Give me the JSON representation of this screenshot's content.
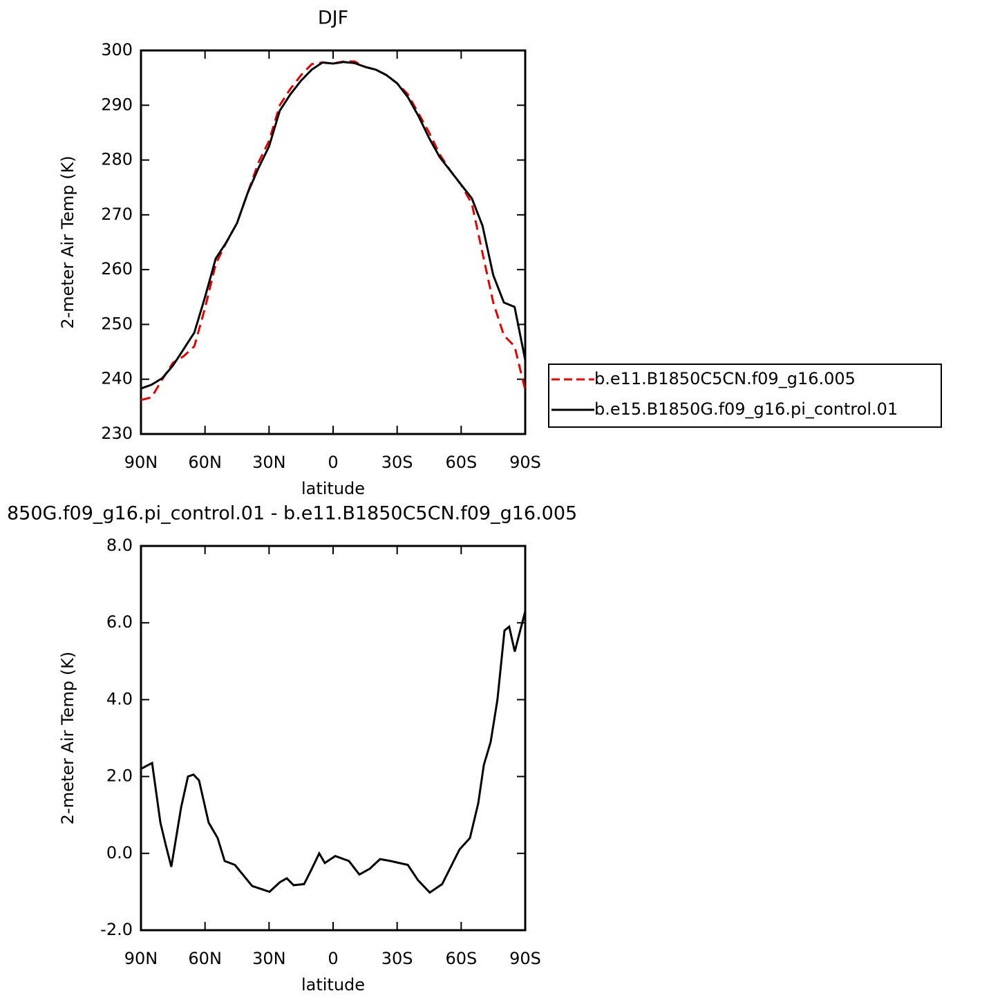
{
  "chart_data": [
    {
      "type": "line",
      "title": "DJF",
      "xlabel": "latitude",
      "ylabel": "2-meter Air Temp (K)",
      "x": [
        90,
        85,
        80,
        75,
        70,
        65,
        60,
        55,
        50,
        45,
        40,
        35,
        30,
        25,
        20,
        15,
        10,
        5,
        0,
        -5,
        -10,
        -15,
        -20,
        -25,
        -30,
        -35,
        -40,
        -45,
        -50,
        -55,
        -60,
        -65,
        -70,
        -75,
        -80,
        -85,
        -90
      ],
      "series": [
        {
          "name": "b.e11.B1850C5CN.f09_g16.005",
          "color": "#e00000",
          "line_style": "dashed",
          "values": [
            236.2,
            236.7,
            240,
            243,
            244.2,
            246,
            253,
            261,
            265,
            268.5,
            274,
            279.5,
            283.5,
            290,
            293,
            295.5,
            297.5,
            297.8,
            297.6,
            298,
            298,
            297,
            296.5,
            295.5,
            294,
            292,
            288.5,
            285,
            281,
            278,
            275.5,
            272,
            263,
            254,
            248,
            246,
            238
          ]
        },
        {
          "name": "b.e15.B1850G.f09_g16.pi_control.01",
          "color": "#000000",
          "line_style": "solid",
          "values": [
            238.3,
            239,
            240.2,
            242.5,
            245.5,
            248.5,
            255,
            262,
            265,
            268.5,
            274,
            278.5,
            282.5,
            289,
            292,
            294.5,
            296.5,
            297.8,
            297.6,
            297.9,
            297.7,
            297,
            296.5,
            295.5,
            294,
            291.5,
            288,
            284,
            280.5,
            278,
            275.5,
            273,
            268,
            259,
            254,
            253.2,
            243.5
          ]
        }
      ],
      "xlim": [
        90,
        -90
      ],
      "xticks": [
        {
          "value": 90,
          "label": "90N"
        },
        {
          "value": 60,
          "label": "60N"
        },
        {
          "value": 30,
          "label": "30N"
        },
        0,
        {
          "value": -30,
          "label": "30S"
        },
        {
          "value": -60,
          "label": "60S"
        },
        {
          "value": -90,
          "label": "90S"
        }
      ],
      "ylim": [
        230,
        300
      ],
      "yticks": [
        230,
        240,
        250,
        260,
        270,
        280,
        290,
        300
      ],
      "legend": "right"
    },
    {
      "type": "line",
      "title": "850G.f09_g16.pi_control.01 - b.e11.B1850C5CN.f09_g16.005",
      "xlabel": "latitude",
      "ylabel": "2-meter Air Temp (K)",
      "color": "#000000",
      "x": [
        90,
        84.8,
        80.9,
        78.3,
        75.8,
        71.2,
        68,
        65.4,
        62.8,
        58.3,
        54.1,
        50.8,
        46,
        37.9,
        29.8,
        24.9,
        21.7,
        18.5,
        13.6,
        10.4,
        6.5,
        3.9,
        -1,
        -7.4,
        -12.3,
        -17.2,
        -22,
        -26.9,
        -35,
        -39.8,
        -45.3,
        -51.1,
        -59.2,
        -64.1,
        -68,
        -70.6,
        -73.8,
        -77,
        -80.3,
        -82.5,
        -85.1,
        -87.4,
        -90
      ],
      "values": [
        2.2,
        2.35,
        0.8,
        0.2,
        -0.35,
        1.2,
        2.0,
        2.05,
        1.9,
        0.8,
        0.4,
        -0.2,
        -0.3,
        -0.85,
        -1.0,
        -0.75,
        -0.65,
        -0.83,
        -0.8,
        -0.45,
        0.0,
        -0.25,
        -0.07,
        -0.2,
        -0.55,
        -0.4,
        -0.15,
        -0.2,
        -0.3,
        -0.7,
        -1.02,
        -0.8,
        0.1,
        0.4,
        1.3,
        2.3,
        2.9,
        4.0,
        5.8,
        5.9,
        5.25,
        5.75,
        6.3
      ],
      "xlim": [
        90,
        -90
      ],
      "xticks": [
        {
          "value": 90,
          "label": "90N"
        },
        {
          "value": 60,
          "label": "60N"
        },
        {
          "value": 30,
          "label": "30N"
        },
        0,
        {
          "value": -30,
          "label": "30S"
        },
        {
          "value": -60,
          "label": "60S"
        },
        {
          "value": -90,
          "label": "90S"
        }
      ],
      "ylim": [
        -2,
        8
      ],
      "yticks": [
        {
          "value": -2,
          "label": "-2.0"
        },
        {
          "value": 0,
          "label": "0.0"
        },
        {
          "value": 2,
          "label": "2.0"
        },
        {
          "value": 4,
          "label": "4.0"
        },
        {
          "value": 6,
          "label": "6.0"
        },
        {
          "value": 8,
          "label": "8.0"
        }
      ]
    }
  ]
}
